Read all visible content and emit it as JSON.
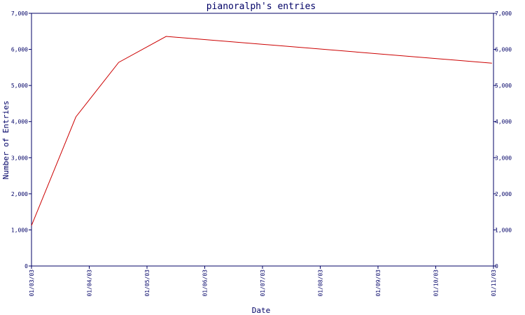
{
  "chart_data": {
    "type": "line",
    "title": "pianoralph's entries",
    "xlabel": "Date",
    "ylabel": "Number of Entries",
    "x_ticks": [
      "01/03/03",
      "01/04/03",
      "01/05/03",
      "01/06/03",
      "01/07/03",
      "01/08/03",
      "01/09/03",
      "01/10/03",
      "01/11/03"
    ],
    "y_ticks": [
      "0",
      "1,000",
      "2,000",
      "3,000",
      "4,000",
      "5,000",
      "6,000",
      "7,000"
    ],
    "y_right_ticks": [
      "0",
      "1,000",
      "2,000",
      "3,000",
      "4,000",
      "5,000",
      "6,000",
      "7,000"
    ],
    "ylim": [
      0,
      7000
    ],
    "xlim": [
      "2003-01-03",
      "2003-11-01"
    ],
    "series": [
      {
        "x": [
          "2003-01-03",
          "2003-02-01",
          "2003-03-01",
          "2003-04-01",
          "2003-10-31"
        ],
        "values": [
          1120,
          4130,
          5640,
          6360,
          5620
        ]
      }
    ],
    "grid": false,
    "legend": "none",
    "colors": {
      "axis": "#000066",
      "series": "#cc0000",
      "background": "#ffffff"
    }
  }
}
